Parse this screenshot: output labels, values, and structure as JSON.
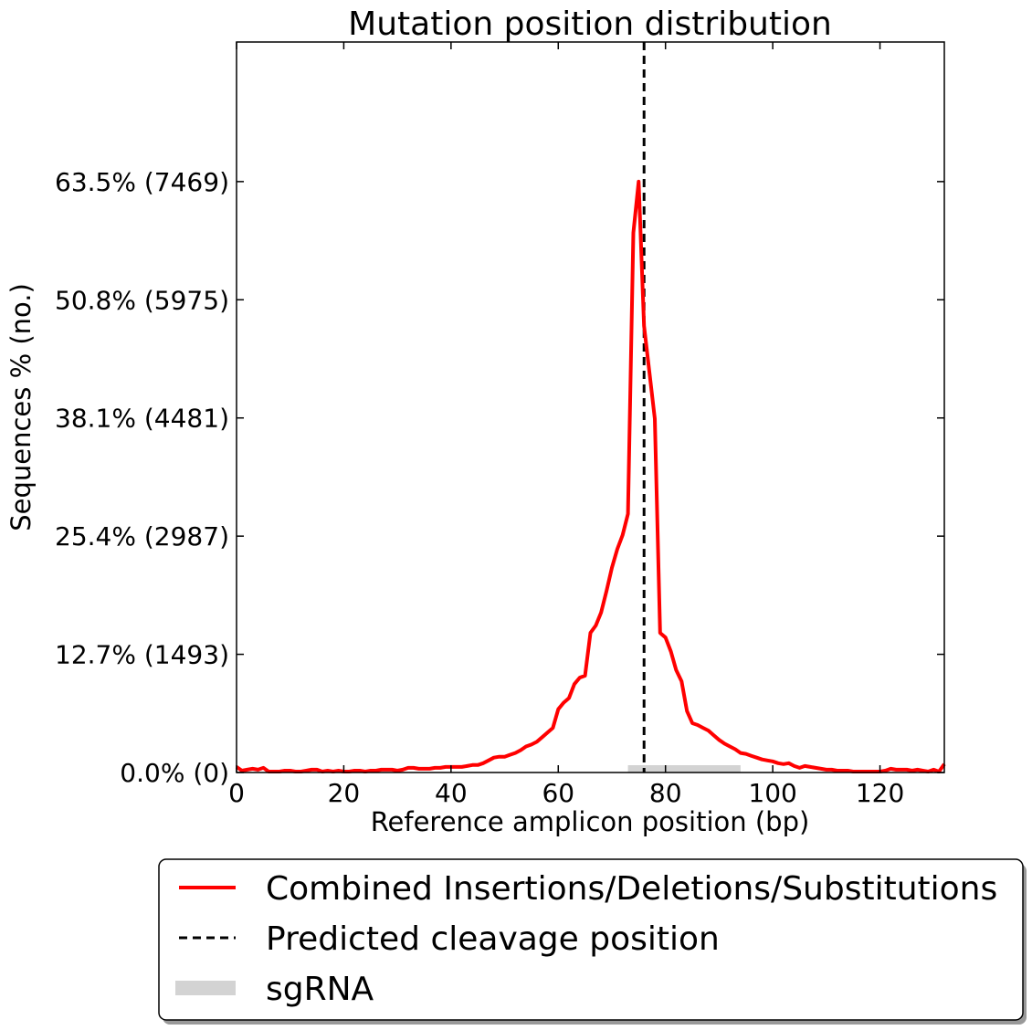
{
  "chart_data": {
    "type": "line",
    "title": "Mutation position distribution",
    "xlabel": "Reference amplicon position (bp)",
    "ylabel": "Sequences % (no.)",
    "xlim": [
      0,
      132
    ],
    "ylim": [
      0,
      78.5
    ],
    "x_ticks": [
      0,
      20,
      40,
      60,
      80,
      100,
      120
    ],
    "x_tick_labels": [
      "0",
      "20",
      "40",
      "60",
      "80",
      "100",
      "120"
    ],
    "y_ticks": [
      0.0,
      12.7,
      25.4,
      38.1,
      50.8,
      63.5
    ],
    "y_tick_labels": [
      "0.0% (0)",
      "12.7% (1493)",
      "25.4% (2987)",
      "38.1% (4481)",
      "50.8% (5975)",
      "63.5% (7469)"
    ],
    "series": [
      {
        "name": "Combined Insertions/Deletions/Substitutions",
        "color": "#ff0000",
        "style": "solid",
        "x": [
          0,
          1,
          2,
          3,
          4,
          5,
          6,
          7,
          8,
          9,
          10,
          11,
          12,
          13,
          14,
          15,
          16,
          17,
          18,
          19,
          20,
          21,
          22,
          23,
          24,
          25,
          26,
          27,
          28,
          29,
          30,
          31,
          32,
          33,
          34,
          35,
          36,
          37,
          38,
          39,
          40,
          41,
          42,
          43,
          44,
          45,
          46,
          47,
          48,
          49,
          50,
          51,
          52,
          53,
          54,
          55,
          56,
          57,
          58,
          59,
          60,
          61,
          62,
          63,
          64,
          65,
          66,
          67,
          68,
          69,
          70,
          71,
          72,
          73,
          74,
          75,
          76,
          77,
          78,
          79,
          80,
          81,
          82,
          83,
          84,
          85,
          86,
          87,
          88,
          89,
          90,
          91,
          92,
          93,
          94,
          95,
          96,
          97,
          98,
          99,
          100,
          101,
          102,
          103,
          104,
          105,
          106,
          107,
          108,
          109,
          110,
          111,
          112,
          113,
          114,
          115,
          116,
          117,
          118,
          119,
          120,
          121,
          122,
          123,
          124,
          125,
          126,
          127,
          128,
          129,
          130,
          131,
          132
        ],
        "y": [
          0.6,
          0.2,
          0.3,
          0.4,
          0.3,
          0.5,
          0.1,
          0.1,
          0.1,
          0.2,
          0.2,
          0.1,
          0.1,
          0.2,
          0.3,
          0.3,
          0.1,
          0.2,
          0.1,
          0.2,
          0.1,
          0.1,
          0.2,
          0.2,
          0.1,
          0.2,
          0.2,
          0.3,
          0.3,
          0.3,
          0.2,
          0.3,
          0.5,
          0.5,
          0.4,
          0.4,
          0.4,
          0.5,
          0.5,
          0.6,
          0.6,
          0.6,
          0.6,
          0.7,
          0.8,
          0.8,
          1.0,
          1.3,
          1.6,
          1.7,
          1.7,
          1.9,
          2.1,
          2.4,
          2.8,
          3.0,
          3.3,
          3.8,
          4.3,
          4.8,
          6.8,
          7.5,
          8.0,
          9.5,
          10.2,
          10.4,
          15.0,
          15.8,
          17.2,
          19.5,
          22.0,
          24.0,
          25.5,
          27.8,
          58.0,
          63.5,
          48.0,
          43.0,
          38.0,
          15.0,
          14.5,
          13.0,
          11.0,
          9.8,
          6.6,
          5.3,
          5.1,
          4.8,
          4.5,
          4.0,
          3.5,
          3.1,
          2.8,
          2.5,
          2.1,
          2.0,
          1.8,
          1.6,
          1.4,
          1.3,
          1.2,
          1.0,
          0.9,
          1.0,
          0.7,
          0.5,
          0.7,
          0.6,
          0.5,
          0.4,
          0.3,
          0.3,
          0.2,
          0.2,
          0.2,
          0.1,
          0.1,
          0.1,
          0.1,
          0.1,
          0.1,
          0.2,
          0.4,
          0.3,
          0.3,
          0.3,
          0.2,
          0.3,
          0.2,
          0.1,
          0.3,
          0.1,
          0.9
        ]
      }
    ],
    "cleavage_position": {
      "name": "Predicted cleavage position",
      "x": 76,
      "color": "#000000",
      "style": "dashed"
    },
    "sgrna": {
      "name": "sgRNA",
      "x_start": 73,
      "x_end": 94,
      "color": "#d3d3d3"
    },
    "legend": {
      "placement": "below-plot",
      "entries": [
        {
          "label": "Combined Insertions/Deletions/Substitutions",
          "style": "solid",
          "color": "#ff0000"
        },
        {
          "label": "Predicted cleavage position",
          "style": "dashed",
          "color": "#000000"
        },
        {
          "label": "sgRNA",
          "style": "band",
          "color": "#d3d3d3"
        }
      ]
    },
    "grid": false
  }
}
